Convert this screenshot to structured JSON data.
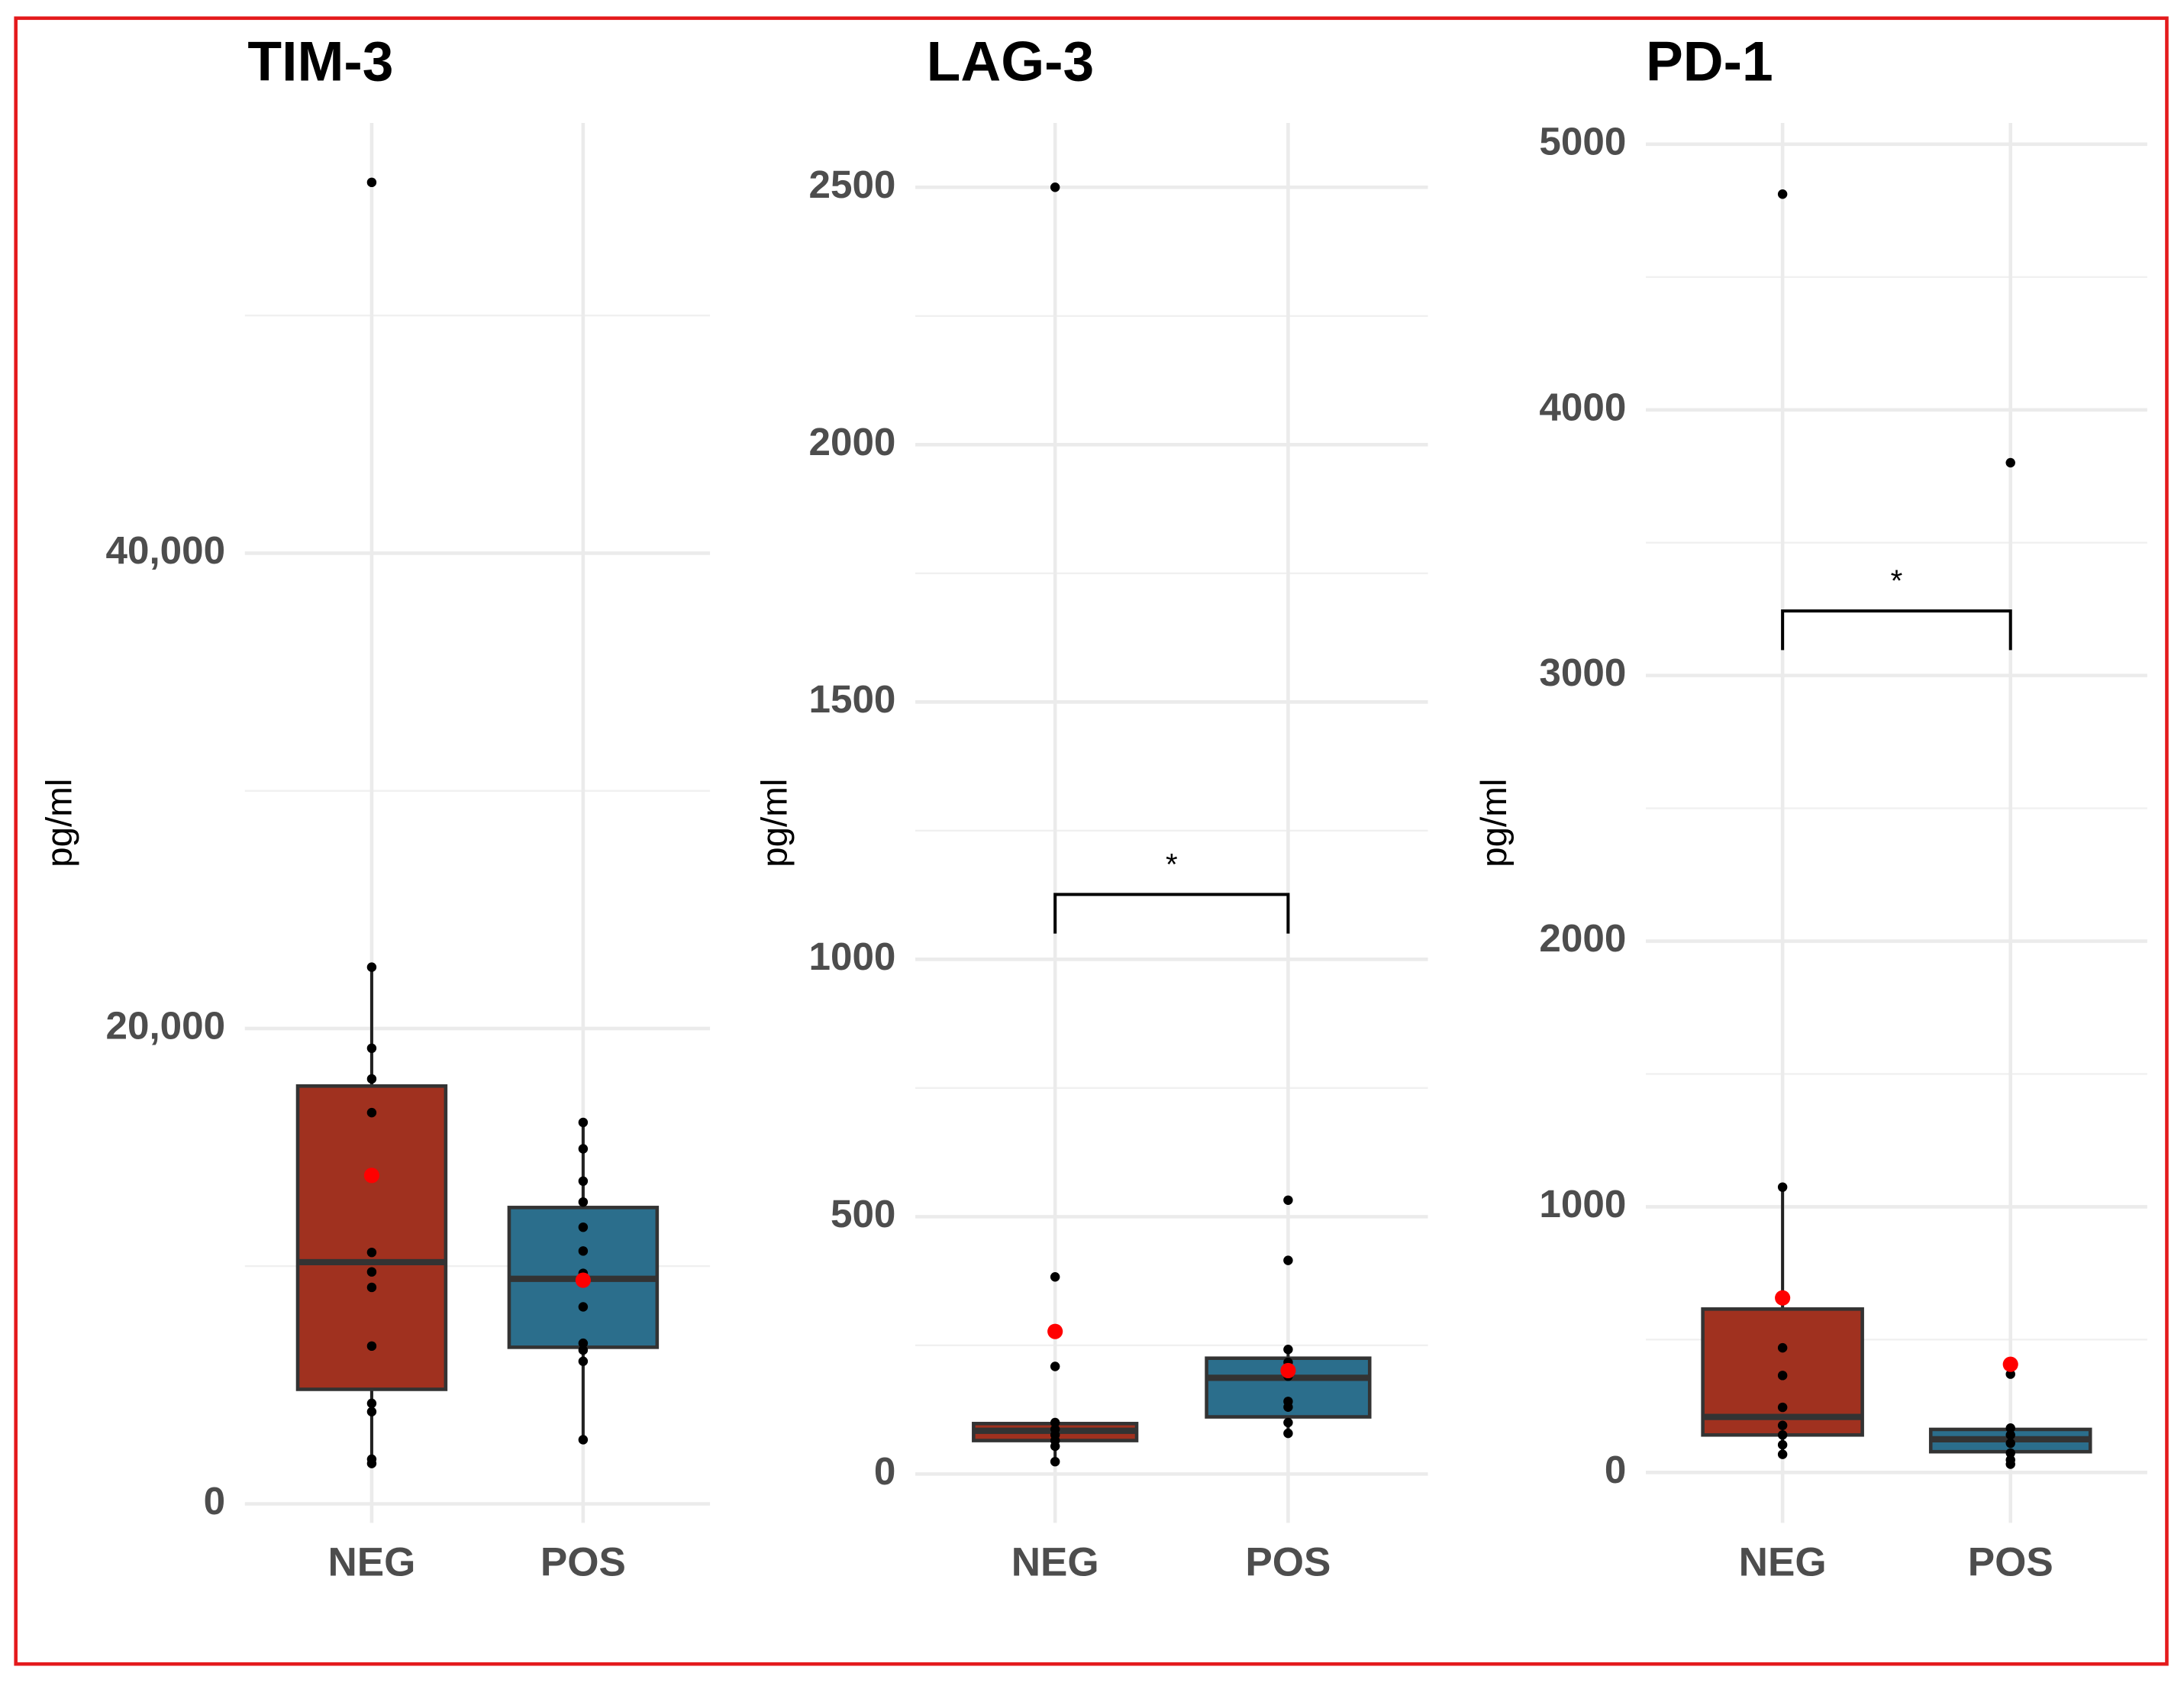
{
  "chart_data": [
    {
      "type": "box",
      "title": "TIM-3",
      "ylabel": "pg/ml",
      "categories": [
        "NEG",
        "POS"
      ],
      "colors": [
        "#a0311f",
        "#2b6e8c"
      ],
      "boxes": [
        {
          "min": 1700,
          "q1": 4820,
          "median": 10170,
          "q3": 17580,
          "max": 22580
        },
        {
          "min": 2700,
          "q1": 6590,
          "median": 9470,
          "q3": 12470,
          "max": 16050
        }
      ],
      "means": [
        13820,
        9410
      ],
      "points": [
        [
          55600,
          22580,
          19170,
          17880,
          16460,
          10580,
          9760,
          9110,
          6640,
          4230,
          3880,
          1880,
          1700
        ],
        [
          16050,
          14940,
          13580,
          12700,
          11640,
          10640,
          9700,
          8290,
          6760,
          6470,
          6000,
          2700
        ]
      ],
      "ylim": [
        -800,
        58100
      ],
      "yticks": [
        0,
        {
          "value": 20000,
          "label": "20,000"
        },
        {
          "value": 40000,
          "label": "40,000"
        }
      ],
      "minor_yticks": [
        10000,
        30000,
        50000
      ],
      "grid": true
    },
    {
      "type": "box",
      "title": "LAG-3",
      "ylabel": "pg/ml",
      "categories": [
        "NEG",
        "POS"
      ],
      "colors": [
        "#a0311f",
        "#2b6e8c"
      ],
      "boxes": [
        {
          "min": 24,
          "q1": 65,
          "median": 84,
          "q3": 98,
          "max": 100
        },
        {
          "min": 79,
          "q1": 111,
          "median": 187,
          "q3": 225,
          "max": 242
        }
      ],
      "means": [
        277,
        201
      ],
      "points": [
        [
          2500,
          383,
          209,
          100,
          87,
          76,
          65,
          54,
          24
        ],
        [
          532,
          415,
          242,
          217,
          190,
          141,
          130,
          100,
          79
        ]
      ],
      "ylim": [
        -95,
        2625
      ],
      "yticks": [
        0,
        500,
        1000,
        1500,
        2000,
        2500
      ],
      "minor_yticks": [
        250,
        750,
        1250,
        1750,
        2250
      ],
      "grid": true,
      "annotations": [
        {
          "text": "*",
          "y": 1126
        }
      ]
    },
    {
      "type": "box",
      "title": "PD-1",
      "ylabel": "pg/ml",
      "categories": [
        "NEG",
        "POS"
      ],
      "colors": [
        "#a0311f",
        "#2b6e8c"
      ],
      "boxes": [
        {
          "min": 68,
          "q1": 141,
          "median": 209,
          "q3": 615,
          "max": 1074
        },
        {
          "min": 31,
          "q1": 78,
          "median": 125,
          "q3": 162,
          "max": 167
        }
      ],
      "means": [
        657,
        407
      ],
      "points": [
        [
          4812,
          1074,
          469,
          365,
          245,
          177,
          141,
          104,
          68
        ],
        [
          3801,
          370,
          167,
          141,
          110,
          73,
          47,
          31
        ]
      ],
      "ylim": [
        -190,
        5080
      ],
      "yticks": [
        0,
        1000,
        2000,
        3000,
        4000,
        5000
      ],
      "minor_yticks": [
        500,
        1500,
        2500,
        3500,
        4500
      ],
      "grid": true,
      "annotations": [
        {
          "text": "*",
          "y": 3243
        }
      ]
    }
  ]
}
